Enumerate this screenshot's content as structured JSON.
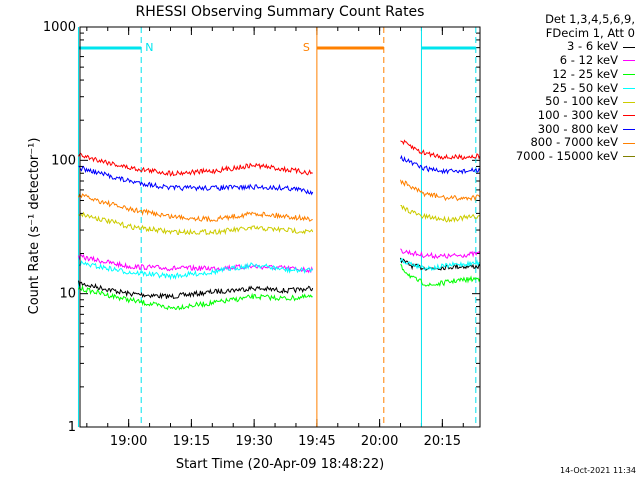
{
  "chart_data": {
    "type": "line",
    "title": "RHESSI Observing Summary Count Rates",
    "xlabel": "Start Time (20-Apr-09 18:48:22)",
    "ylabel": "Count Rate (s⁻¹ detector⁻¹)",
    "yscale": "log",
    "ylim": [
      1,
      1000
    ],
    "y_ticks": [
      1,
      10,
      100,
      1000
    ],
    "y_tick_labels": [
      "1",
      "10",
      "100",
      "1000"
    ],
    "xlim": [
      "18:48:22",
      "20:24"
    ],
    "x_ticks": [
      "19:00",
      "19:15",
      "19:30",
      "19:45",
      "20:00",
      "20:15"
    ],
    "legend_header": [
      "Det 1,3,4,5,6,9,",
      "FDecim 1, Att 0"
    ],
    "legend_position": "right",
    "series": [
      {
        "name": "3 - 6 keV",
        "color": "#000000",
        "segments": [
          [
            [
              "18:48",
              12
            ],
            [
              "19:00",
              10
            ],
            [
              "19:10",
              9.5
            ],
            [
              "19:20",
              10.3
            ],
            [
              "19:30",
              11
            ],
            [
              "19:38",
              10.5
            ],
            [
              "19:44",
              11
            ]
          ],
          [
            [
              "20:05",
              18
            ],
            [
              "20:08",
              16
            ],
            [
              "20:12",
              15.5
            ],
            [
              "20:18",
              16
            ],
            [
              "20:24",
              16
            ]
          ]
        ]
      },
      {
        "name": "6 - 12 keV",
        "color": "#ff00ff",
        "segments": [
          [
            [
              "18:48",
              19
            ],
            [
              "19:00",
              16
            ],
            [
              "19:10",
              15.5
            ],
            [
              "19:20",
              15.5
            ],
            [
              "19:30",
              16
            ],
            [
              "19:38",
              15.5
            ],
            [
              "19:44",
              15
            ]
          ],
          [
            [
              "20:05",
              21
            ],
            [
              "20:10",
              19.5
            ],
            [
              "20:16",
              19
            ],
            [
              "20:20",
              19.5
            ],
            [
              "20:24",
              20
            ]
          ]
        ]
      },
      {
        "name": "12 - 25 keV",
        "color": "#00ff00",
        "segments": [
          [
            [
              "18:48",
              11
            ],
            [
              "19:00",
              9
            ],
            [
              "19:10",
              7.8
            ],
            [
              "19:20",
              8.5
            ],
            [
              "19:30",
              9.5
            ],
            [
              "19:38",
              9.2
            ],
            [
              "19:44",
              9.5
            ]
          ],
          [
            [
              "20:05",
              16
            ],
            [
              "20:08",
              13
            ],
            [
              "20:12",
              11.5
            ],
            [
              "20:18",
              12.5
            ],
            [
              "20:24",
              13
            ]
          ]
        ]
      },
      {
        "name": "25 - 50 keV",
        "color": "#00ffff",
        "segments": [
          [
            [
              "18:48",
              17
            ],
            [
              "19:00",
              14.5
            ],
            [
              "19:10",
              13.5
            ],
            [
              "19:20",
              14.5
            ],
            [
              "19:30",
              16.5
            ],
            [
              "19:38",
              15
            ],
            [
              "19:44",
              15
            ]
          ],
          [
            [
              "20:05",
              18
            ],
            [
              "20:08",
              16.5
            ],
            [
              "20:12",
              15.5
            ],
            [
              "20:18",
              16.5
            ],
            [
              "20:24",
              17
            ]
          ]
        ]
      },
      {
        "name": "50 - 100 keV",
        "color": "#cccc00",
        "segments": [
          [
            [
              "18:48",
              40
            ],
            [
              "19:00",
              32
            ],
            [
              "19:10",
              29
            ],
            [
              "19:20",
              29
            ],
            [
              "19:30",
              31
            ],
            [
              "19:38",
              30
            ],
            [
              "19:44",
              29
            ]
          ],
          [
            [
              "20:05",
              45
            ],
            [
              "20:10",
              38
            ],
            [
              "20:16",
              36
            ],
            [
              "20:20",
              37
            ],
            [
              "20:24",
              38
            ]
          ]
        ]
      },
      {
        "name": "100 - 300 keV",
        "color": "#ff0000",
        "segments": [
          [
            [
              "18:48",
              110
            ],
            [
              "19:00",
              88
            ],
            [
              "19:10",
              80
            ],
            [
              "19:20",
              83
            ],
            [
              "19:30",
              92
            ],
            [
              "19:38",
              85
            ],
            [
              "19:44",
              80
            ]
          ],
          [
            [
              "20:05",
              140
            ],
            [
              "20:10",
              115
            ],
            [
              "20:16",
              105
            ],
            [
              "20:20",
              106
            ],
            [
              "20:24",
              108
            ]
          ]
        ]
      },
      {
        "name": "300 - 800 keV",
        "color": "#0000ff",
        "segments": [
          [
            [
              "18:48",
              88
            ],
            [
              "19:00",
              70
            ],
            [
              "19:10",
              62
            ],
            [
              "19:20",
              62
            ],
            [
              "19:30",
              63
            ],
            [
              "19:38",
              62
            ],
            [
              "19:44",
              58
            ]
          ],
          [
            [
              "20:05",
              105
            ],
            [
              "20:10",
              88
            ],
            [
              "20:16",
              82
            ],
            [
              "20:20",
              83
            ],
            [
              "20:24",
              84
            ]
          ]
        ]
      },
      {
        "name": "800 - 7000 keV",
        "color": "#ff8000",
        "segments": [
          [
            [
              "18:48",
              55
            ],
            [
              "19:00",
              43
            ],
            [
              "19:10",
              38
            ],
            [
              "19:20",
              36
            ],
            [
              "19:30",
              40
            ],
            [
              "19:38",
              38
            ],
            [
              "19:44",
              36
            ]
          ],
          [
            [
              "20:05",
              70
            ],
            [
              "20:10",
              57
            ],
            [
              "20:16",
              52
            ],
            [
              "20:20",
              52
            ],
            [
              "20:24",
              53
            ]
          ]
        ]
      },
      {
        "name": "7000 - 15000 keV",
        "color": "#808000",
        "segments": []
      }
    ],
    "annotations": [
      {
        "label": "N",
        "color": "#00e5ee",
        "start": "18:48",
        "end": "19:03"
      },
      {
        "label": "S",
        "color": "#ff8000",
        "start": "19:45",
        "end": "20:01"
      },
      {
        "label": "",
        "color": "#00e5ee",
        "start": "20:10",
        "end": "20:23"
      }
    ]
  },
  "timestamp": "14-Oct-2021 11:34"
}
